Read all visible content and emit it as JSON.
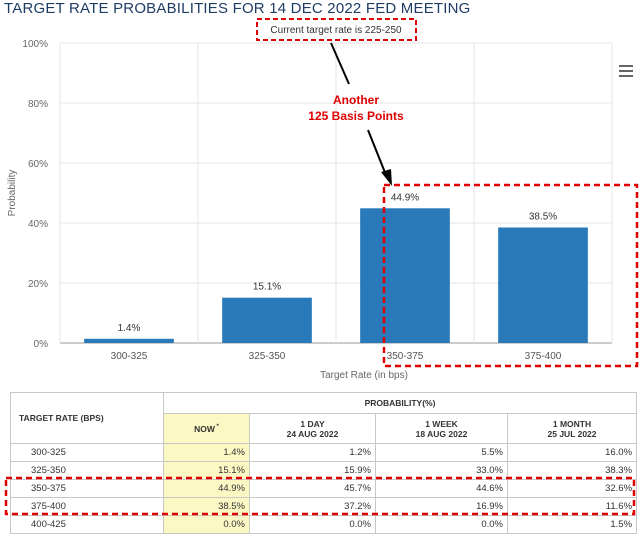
{
  "title": "TARGET RATE PROBABILITIES FOR 14 DEC 2022 FED MEETING",
  "annotations": {
    "current_rate": "Current target rate is 225-250",
    "callout_line1": "Another",
    "callout_line2": "125 Basis Points"
  },
  "colors": {
    "bar": "#2a7ab9",
    "title": "#1e3c64",
    "highlight": "#e00000",
    "now_col": "#fbf8c4"
  },
  "chart_data": {
    "type": "bar",
    "title": "TARGET RATE PROBABILITIES FOR 14 DEC 2022 FED MEETING",
    "xlabel": "Target Rate (in bps)",
    "ylabel": "Probability",
    "categories": [
      "300-325",
      "325-350",
      "350-375",
      "375-400"
    ],
    "values": [
      1.4,
      15.1,
      44.9,
      38.5
    ],
    "value_labels": [
      "1.4%",
      "15.1%",
      "44.9%",
      "38.5%"
    ],
    "yticks": [
      "0%",
      "20%",
      "40%",
      "60%",
      "80%",
      "100%"
    ],
    "ylim": [
      0,
      100
    ],
    "grid": true,
    "legend": "none"
  },
  "table": {
    "rate_header": "TARGET RATE (BPS)",
    "prob_header": "PROBABILITY(%)",
    "columns": [
      {
        "line1": "NOW",
        "line2": "",
        "marker": "*"
      },
      {
        "line1": "1 DAY",
        "line2": "24 AUG 2022",
        "marker": ""
      },
      {
        "line1": "1 WEEK",
        "line2": "18 AUG 2022",
        "marker": ""
      },
      {
        "line1": "1 MONTH",
        "line2": "25 JUL 2022",
        "marker": ""
      }
    ],
    "rows": [
      {
        "rate": "300-325",
        "values": [
          "1.4%",
          "1.2%",
          "5.5%",
          "16.0%"
        ]
      },
      {
        "rate": "325-350",
        "values": [
          "15.1%",
          "15.9%",
          "33.0%",
          "38.3%"
        ]
      },
      {
        "rate": "350-375",
        "values": [
          "44.9%",
          "45.7%",
          "44.6%",
          "32.6%"
        ]
      },
      {
        "rate": "375-400",
        "values": [
          "38.5%",
          "37.2%",
          "16.9%",
          "11.6%"
        ]
      },
      {
        "rate": "400-425",
        "values": [
          "0.0%",
          "0.0%",
          "0.0%",
          "1.5%"
        ]
      }
    ]
  }
}
